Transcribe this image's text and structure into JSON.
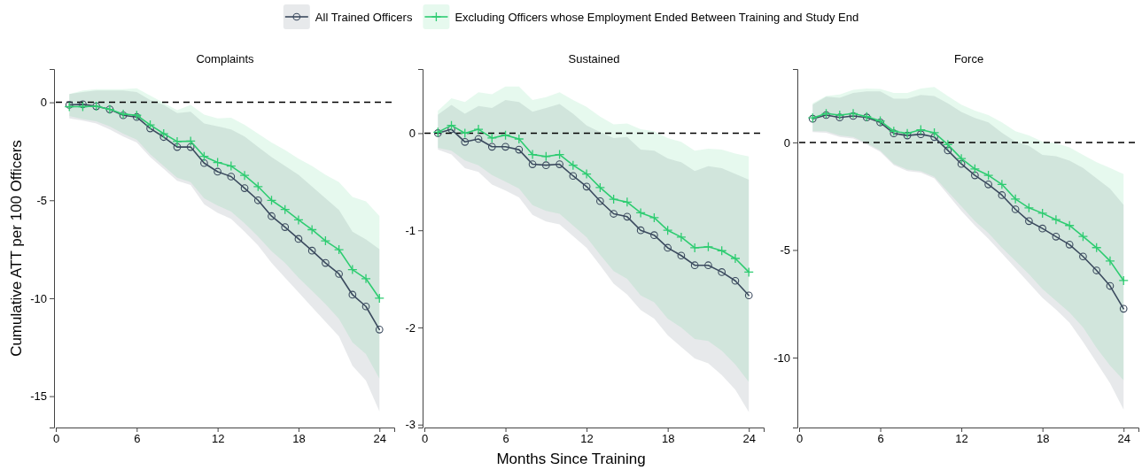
{
  "chart_data": [
    {
      "type": "line",
      "title": "Complaints",
      "ylabel": "Cumulative ATT per 100 Officers",
      "x": [
        1,
        2,
        3,
        4,
        5,
        6,
        7,
        8,
        9,
        10,
        11,
        12,
        13,
        14,
        15,
        16,
        17,
        18,
        19,
        20,
        21,
        22,
        23,
        24
      ],
      "xlim": [
        0,
        25.1
      ],
      "xticks": [
        0,
        6,
        12,
        18,
        24
      ],
      "ylim": [
        -16.6,
        1.7
      ],
      "yticks": [
        0,
        -5,
        -10,
        -15
      ],
      "grid": false,
      "legend": "top",
      "line_style": "solid",
      "ref_lines": [
        {
          "axis": "y",
          "value": 0,
          "color": "#000000",
          "line_style": "dashed"
        }
      ],
      "series": [
        {
          "name": "All Trained Officers",
          "color": "#3b4a5e",
          "marker": "circle",
          "values": [
            -0.13,
            -0.1,
            -0.2,
            -0.36,
            -0.66,
            -0.75,
            -1.33,
            -1.77,
            -2.28,
            -2.28,
            -3.1,
            -3.54,
            -3.79,
            -4.38,
            -5.0,
            -5.81,
            -6.37,
            -6.97,
            -7.57,
            -8.2,
            -8.76,
            -9.82,
            -10.42,
            -11.6
          ],
          "upper": [
            0.42,
            0.52,
            0.6,
            0.6,
            0.6,
            0.52,
            0.12,
            -0.13,
            -0.55,
            -0.48,
            -1.08,
            -1.23,
            -1.38,
            -1.75,
            -2.28,
            -2.8,
            -3.25,
            -3.7,
            -4.3,
            -4.9,
            -5.5,
            -6.6,
            -7.0,
            -7.5
          ],
          "lower": [
            -0.82,
            -0.93,
            -1.08,
            -1.38,
            -1.75,
            -2.05,
            -2.8,
            -3.4,
            -4.0,
            -4.22,
            -5.2,
            -5.64,
            -5.95,
            -6.6,
            -7.3,
            -8.2,
            -8.95,
            -9.7,
            -10.45,
            -11.2,
            -11.95,
            -13.45,
            -14.2,
            -15.77
          ]
        },
        {
          "name": "Excluding Officers whose Employment Ended Between Training and Study End",
          "color": "#2ecc71",
          "marker": "cross",
          "values": [
            -0.22,
            -0.22,
            -0.2,
            -0.36,
            -0.6,
            -0.66,
            -1.15,
            -1.6,
            -2.0,
            -1.98,
            -2.76,
            -3.07,
            -3.25,
            -3.73,
            -4.3,
            -5.0,
            -5.47,
            -6.0,
            -6.5,
            -7.07,
            -7.52,
            -8.54,
            -9.0,
            -10.0
          ],
          "upper": [
            0.42,
            0.6,
            0.67,
            0.67,
            0.67,
            0.72,
            0.34,
            -0.03,
            -0.4,
            -0.13,
            -0.63,
            -0.82,
            -0.78,
            -1.15,
            -1.6,
            -2.05,
            -2.43,
            -2.88,
            -3.25,
            -3.7,
            -4.07,
            -4.83,
            -5.05,
            -5.8
          ],
          "lower": [
            -0.7,
            -0.85,
            -0.97,
            -1.23,
            -1.6,
            -1.9,
            -2.65,
            -3.25,
            -3.85,
            -4.07,
            -4.9,
            -5.27,
            -5.57,
            -6.17,
            -6.85,
            -7.6,
            -8.2,
            -8.95,
            -9.62,
            -10.3,
            -11.05,
            -12.25,
            -12.85,
            -14.1
          ]
        }
      ]
    },
    {
      "type": "line",
      "title": "Sustained",
      "xlabel": "Months Since Training",
      "x": [
        1,
        2,
        3,
        4,
        5,
        6,
        7,
        8,
        9,
        10,
        11,
        12,
        13,
        14,
        15,
        16,
        17,
        18,
        19,
        20,
        21,
        22,
        23,
        24
      ],
      "xlim": [
        0,
        25.1
      ],
      "xticks": [
        0,
        6,
        12,
        18,
        24
      ],
      "ylim": [
        -3.03,
        0.66
      ],
      "yticks": [
        0,
        -1,
        -2,
        -3
      ],
      "grid": false,
      "line_style": "solid",
      "ref_lines": [
        {
          "axis": "y",
          "value": 0,
          "color": "#000000",
          "line_style": "dashed"
        }
      ],
      "series": [
        {
          "color": "#3b4a5e",
          "marker": "circle",
          "values": [
            0,
            0.04,
            -0.09,
            -0.06,
            -0.14,
            -0.14,
            -0.17,
            -0.32,
            -0.33,
            -0.32,
            -0.44,
            -0.55,
            -0.7,
            -0.83,
            -0.86,
            -1.0,
            -1.05,
            -1.18,
            -1.26,
            -1.36,
            -1.36,
            -1.43,
            -1.52,
            -1.67
          ],
          "upper": [
            0.19,
            0.29,
            0.2,
            0.28,
            0.26,
            0.34,
            0.32,
            0.22,
            0.26,
            0.3,
            0.2,
            0.08,
            0.01,
            -0.05,
            -0.04,
            -0.17,
            -0.18,
            -0.26,
            -0.3,
            -0.39,
            -0.34,
            -0.36,
            -0.42,
            -0.48
          ],
          "lower": [
            -0.17,
            -0.22,
            -0.36,
            -0.4,
            -0.53,
            -0.59,
            -0.66,
            -0.84,
            -0.91,
            -0.94,
            -1.06,
            -1.18,
            -1.36,
            -1.55,
            -1.66,
            -1.82,
            -1.91,
            -2.08,
            -2.2,
            -2.32,
            -2.37,
            -2.49,
            -2.64,
            -2.87
          ]
        },
        {
          "color": "#2ecc71",
          "marker": "cross",
          "values": [
            0.01,
            0.08,
            0,
            0.04,
            -0.05,
            -0.02,
            -0.06,
            -0.22,
            -0.24,
            -0.22,
            -0.33,
            -0.42,
            -0.56,
            -0.68,
            -0.71,
            -0.82,
            -0.87,
            -1.0,
            -1.07,
            -1.18,
            -1.17,
            -1.21,
            -1.29,
            -1.43
          ],
          "upper": [
            0.23,
            0.36,
            0.32,
            0.42,
            0.4,
            0.48,
            0.48,
            0.34,
            0.37,
            0.42,
            0.34,
            0.27,
            0.17,
            0.09,
            0.1,
            0.04,
            0.02,
            -0.05,
            -0.09,
            -0.18,
            -0.16,
            -0.17,
            -0.21,
            -0.24
          ],
          "lower": [
            -0.15,
            -0.18,
            -0.28,
            -0.33,
            -0.43,
            -0.5,
            -0.57,
            -0.74,
            -0.8,
            -0.83,
            -0.95,
            -1.07,
            -1.25,
            -1.42,
            -1.5,
            -1.67,
            -1.74,
            -1.91,
            -2.0,
            -2.12,
            -2.14,
            -2.24,
            -2.38,
            -2.56
          ]
        }
      ]
    },
    {
      "type": "line",
      "title": "Force",
      "x": [
        1,
        2,
        3,
        4,
        5,
        6,
        7,
        8,
        9,
        10,
        11,
        12,
        13,
        14,
        15,
        16,
        17,
        18,
        19,
        20,
        21,
        22,
        23,
        24
      ],
      "xlim": [
        0,
        25.1
      ],
      "xticks": [
        0,
        6,
        12,
        18,
        24
      ],
      "ylim": [
        -13.25,
        3.41
      ],
      "yticks": [
        0,
        -5,
        -10
      ],
      "grid": false,
      "line_style": "solid",
      "ref_lines": [
        {
          "axis": "y",
          "value": 0,
          "color": "#000000",
          "line_style": "dashed"
        }
      ],
      "series": [
        {
          "color": "#3b4a5e",
          "marker": "circle",
          "values": [
            1.1,
            1.27,
            1.16,
            1.23,
            1.16,
            0.93,
            0.42,
            0.32,
            0.38,
            0.25,
            -0.37,
            -1.0,
            -1.53,
            -1.95,
            -2.45,
            -3.11,
            -3.66,
            -4.0,
            -4.38,
            -4.75,
            -5.3,
            -5.95,
            -6.67,
            -7.73
          ],
          "upper": [
            1.75,
            2.12,
            2.07,
            2.3,
            2.37,
            2.37,
            2.03,
            2.03,
            2.21,
            2.16,
            1.82,
            1.41,
            1.14,
            0.93,
            0.45,
            0.04,
            -0.16,
            -0.58,
            -0.64,
            -0.85,
            -1.19,
            -1.67,
            -2.15,
            -2.9
          ],
          "lower": [
            0.48,
            0.45,
            0.25,
            0.18,
            -0.1,
            -0.44,
            -1.05,
            -1.33,
            -1.4,
            -1.67,
            -2.42,
            -3.18,
            -3.86,
            -4.48,
            -5.16,
            -5.85,
            -6.53,
            -7.22,
            -7.77,
            -8.38,
            -9.27,
            -10.23,
            -11.19,
            -12.42
          ]
        },
        {
          "color": "#2ecc71",
          "marker": "cross",
          "values": [
            1.14,
            1.34,
            1.27,
            1.34,
            1.2,
            1.0,
            0.52,
            0.42,
            0.59,
            0.45,
            -0.1,
            -0.75,
            -1.23,
            -1.53,
            -1.95,
            -2.63,
            -3.04,
            -3.29,
            -3.59,
            -3.86,
            -4.37,
            -4.89,
            -5.51,
            -6.42
          ],
          "upper": [
            1.82,
            2.16,
            2.23,
            2.44,
            2.51,
            2.48,
            2.3,
            2.3,
            2.51,
            2.58,
            2.16,
            1.75,
            1.48,
            1.27,
            0.93,
            0.52,
            0.32,
            0.04,
            -0.03,
            -0.23,
            -0.58,
            -0.92,
            -1.19,
            -1.47
          ],
          "lower": [
            0.52,
            0.52,
            0.32,
            0.25,
            -0.03,
            -0.37,
            -0.99,
            -1.26,
            -1.33,
            -1.6,
            -2.29,
            -2.97,
            -3.66,
            -4.21,
            -4.89,
            -5.51,
            -6.12,
            -6.81,
            -7.36,
            -7.9,
            -8.59,
            -9.55,
            -10.37,
            -11.05
          ]
        }
      ]
    }
  ]
}
